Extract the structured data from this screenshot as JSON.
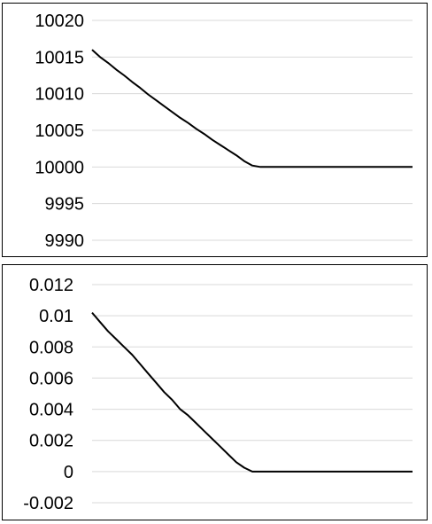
{
  "chart_data": [
    {
      "type": "line",
      "title": "",
      "xlabel": "",
      "ylabel": "",
      "ylim": [
        9990,
        10020
      ],
      "yticks": [
        "10020",
        "10015",
        "10010",
        "10005",
        "10000",
        "9995",
        "9990"
      ],
      "grid": true,
      "legend": "none",
      "series": [
        {
          "x": [
            0,
            1,
            2,
            3,
            4,
            5,
            6,
            7,
            8,
            9,
            10,
            11,
            12,
            13,
            14,
            15,
            16,
            17,
            18,
            19,
            20,
            21,
            22,
            23,
            24,
            25,
            26,
            27,
            28,
            29,
            30,
            31,
            32,
            33,
            34,
            35,
            36,
            37,
            38,
            39,
            40
          ],
          "values": [
            10016,
            10015,
            10014.2,
            10013.3,
            10012.5,
            10011.6,
            10010.8,
            10009.9,
            10009.1,
            10008.3,
            10007.5,
            10006.7,
            10006,
            10005.2,
            10004.5,
            10003.7,
            10003,
            10002.3,
            10001.6,
            10000.8,
            10000.2,
            10000,
            10000,
            10000,
            10000,
            10000,
            10000,
            10000,
            10000,
            10000,
            10000,
            10000,
            10000,
            10000,
            10000,
            10000,
            10000,
            10000,
            10000,
            10000,
            10000
          ]
        }
      ]
    },
    {
      "type": "line",
      "title": "",
      "xlabel": "",
      "ylabel": "",
      "ylim": [
        -0.002,
        0.012
      ],
      "yticks": [
        "0.012",
        "0.01",
        "0.008",
        "0.006",
        "0.004",
        "0.002",
        "0",
        "-0.002"
      ],
      "grid": true,
      "legend": "none",
      "series": [
        {
          "x": [
            0,
            1,
            2,
            3,
            4,
            5,
            6,
            7,
            8,
            9,
            10,
            11,
            12,
            13,
            14,
            15,
            16,
            17,
            18,
            19,
            20,
            21,
            22,
            23,
            24,
            25,
            26,
            27,
            28,
            29,
            30,
            31,
            32,
            33,
            34,
            35,
            36,
            37,
            38,
            39,
            40
          ],
          "values": [
            0.0102,
            0.0096,
            0.009,
            0.0085,
            0.008,
            0.0075,
            0.0069,
            0.0063,
            0.0057,
            0.0051,
            0.0046,
            0.004,
            0.0036,
            0.0031,
            0.0026,
            0.0021,
            0.0016,
            0.0011,
            0.0006,
            0.00025,
            0,
            0,
            0,
            0,
            0,
            0,
            0,
            0,
            0,
            0,
            0,
            0,
            0,
            0,
            0,
            0,
            0,
            0,
            0,
            0,
            0
          ]
        }
      ]
    }
  ]
}
